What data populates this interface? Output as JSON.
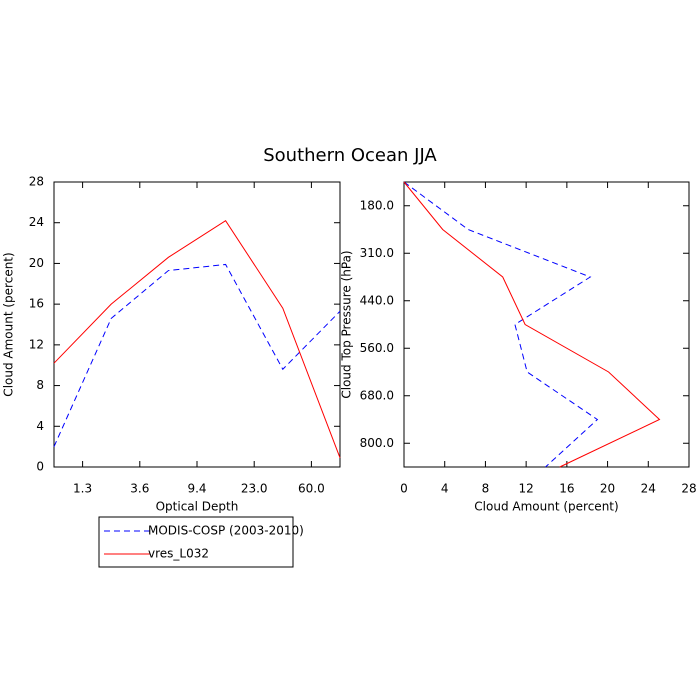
{
  "title": "Southern Ocean JJA",
  "chart_data": [
    {
      "type": "line",
      "orientation": "vertical",
      "xlabel": "Optical Depth",
      "ylabel": "Cloud Amount (percent)",
      "x": [
        0,
        1,
        2,
        3,
        4,
        5
      ],
      "xlim": [
        0,
        5
      ],
      "xticks": [
        {
          "value": 0.5,
          "label": "1.3"
        },
        {
          "value": 1.5,
          "label": "3.6"
        },
        {
          "value": 2.5,
          "label": "9.4"
        },
        {
          "value": 3.5,
          "label": "23.0"
        },
        {
          "value": 4.5,
          "label": "60.0"
        }
      ],
      "ylim": [
        0,
        28
      ],
      "yticks": [
        0,
        4,
        8,
        12,
        16,
        20,
        24,
        28
      ],
      "series": [
        {
          "name": "MODIS-COSP (2003-2010)",
          "color": "#0000ff",
          "dash": true,
          "values": [
            2.0,
            14.6,
            19.3,
            19.9,
            9.6,
            15.3
          ]
        },
        {
          "name": "vres_L032",
          "color": "#ff0000",
          "dash": false,
          "values": [
            10.2,
            16.0,
            20.6,
            24.2,
            15.6,
            0.9
          ]
        }
      ]
    },
    {
      "type": "line",
      "orientation": "horizontal",
      "xlabel": "Cloud Amount (percent)",
      "ylabel": "Cloud Top Pressure (hPa)",
      "y": [
        0,
        1,
        2,
        3,
        4,
        5,
        6
      ],
      "ylim": [
        6,
        0
      ],
      "yticks": [
        {
          "value": 0.5,
          "label": "180.0"
        },
        {
          "value": 1.5,
          "label": "310.0"
        },
        {
          "value": 2.5,
          "label": "440.0"
        },
        {
          "value": 3.5,
          "label": "560.0"
        },
        {
          "value": 4.5,
          "label": "680.0"
        },
        {
          "value": 5.5,
          "label": "800.0"
        }
      ],
      "xlim": [
        0,
        28
      ],
      "xticks": [
        0,
        4,
        8,
        12,
        16,
        20,
        24,
        28
      ],
      "series": [
        {
          "name": "MODIS-COSP (2003-2010)",
          "color": "#0000ff",
          "dash": true,
          "values": [
            0,
            6.3,
            18.3,
            10.9,
            12.1,
            19.0,
            13.9
          ]
        },
        {
          "name": "vres_L032",
          "color": "#ff0000",
          "dash": false,
          "values": [
            0,
            3.8,
            9.7,
            11.9,
            20.1,
            25.1,
            15.3
          ]
        }
      ]
    }
  ]
}
